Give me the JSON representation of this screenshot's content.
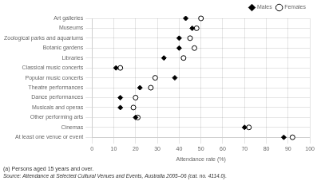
{
  "chart_data": {
    "type": "dot",
    "orientation": "horizontal",
    "categories": [
      "Art galleries",
      "Museums",
      "Zoological parks and aquariums",
      "Botanic gardens",
      "Libraries",
      "Classical music concerts",
      "Popular music concerts",
      "Theatre performances",
      "Dance performances",
      "Musicals and operas",
      "Other performing arts",
      "Cinemas",
      "At least one venue or event"
    ],
    "series": [
      {
        "name": "Males",
        "color": "black",
        "marker": "diamond",
        "values": [
          43,
          46,
          40,
          40,
          33,
          11,
          38,
          22,
          13,
          13,
          20,
          70,
          88
        ]
      },
      {
        "name": "Females",
        "color": "black",
        "marker": "open_circle",
        "values": [
          50,
          48,
          45,
          47,
          42,
          13,
          29,
          27,
          20,
          19,
          21,
          72,
          92
        ]
      }
    ],
    "xlabel": "Attendance rate (%)",
    "xlim": [
      0,
      100
    ],
    "xticks": [
      0,
      10,
      20,
      30,
      40,
      50,
      60,
      70,
      80,
      90,
      100
    ],
    "grid": true,
    "legend": "upper right",
    "annotations": [
      "(a) Persons aged 15 years and over.",
      "Source: Attendance at Selected Cultural Venues and Events, Australia 2005–06 (cat. no. 4114.0)."
    ]
  }
}
